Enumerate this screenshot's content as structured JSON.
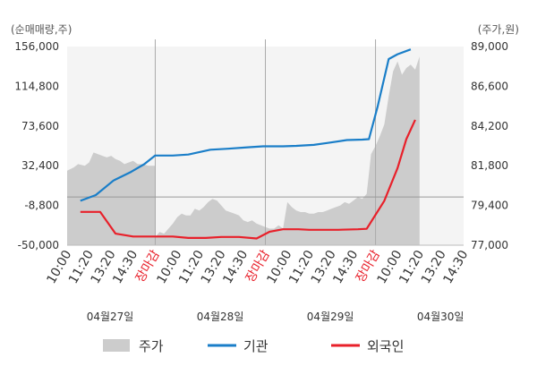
{
  "chart_data": {
    "type": "line",
    "y_left": {
      "unit_label": "(순매매량,주)",
      "ticks": [
        "156,000",
        "114,800",
        "73,600",
        "32,400",
        "-8,800",
        "-50,000"
      ],
      "range": [
        -50000,
        156000
      ]
    },
    "y_right": {
      "unit_label": "(주가,원)",
      "ticks": [
        "89,000",
        "86,600",
        "84,200",
        "81,800",
        "79,400",
        "77,000"
      ],
      "range": [
        77000,
        89000
      ]
    },
    "x_tick_labels": [
      {
        "text": "10:00",
        "red": false
      },
      {
        "text": "11:20",
        "red": false
      },
      {
        "text": "13:20",
        "red": false
      },
      {
        "text": "14:30",
        "red": false
      },
      {
        "text": "장마감",
        "red": true
      },
      {
        "text": "10:00",
        "red": false
      },
      {
        "text": "11:20",
        "red": false
      },
      {
        "text": "13:20",
        "red": false
      },
      {
        "text": "14:30",
        "red": false
      },
      {
        "text": "장마감",
        "red": true
      },
      {
        "text": "10:00",
        "red": false
      },
      {
        "text": "11:20",
        "red": false
      },
      {
        "text": "13:20",
        "red": false
      },
      {
        "text": "14:30",
        "red": false
      },
      {
        "text": "장마감",
        "red": true
      },
      {
        "text": "10:00",
        "red": false
      },
      {
        "text": "11:20",
        "red": false
      },
      {
        "text": "13:20",
        "red": false
      },
      {
        "text": "14:30",
        "red": false
      }
    ],
    "dates": [
      "04월27일",
      "04월28일",
      "04월29일",
      "04월30일"
    ],
    "date_tick_index": [
      0,
      5,
      10,
      15
    ],
    "series": [
      {
        "name": "주가",
        "kind": "area",
        "color": "#cccccc",
        "axis": "right",
        "points": [
          [
            0,
            81500
          ],
          [
            0.3,
            81700
          ],
          [
            0.5,
            81900
          ],
          [
            0.8,
            81800
          ],
          [
            1.0,
            82000
          ],
          [
            1.2,
            82600
          ],
          [
            1.4,
            82500
          ],
          [
            1.6,
            82400
          ],
          [
            1.8,
            82300
          ],
          [
            2.0,
            82400
          ],
          [
            2.2,
            82200
          ],
          [
            2.4,
            82100
          ],
          [
            2.6,
            81900
          ],
          [
            2.8,
            82000
          ],
          [
            3.0,
            82100
          ],
          [
            3.2,
            81900
          ],
          [
            3.4,
            81900
          ],
          [
            3.7,
            81800
          ],
          [
            4.0,
            81800
          ],
          [
            4.0,
            77500
          ],
          [
            4.2,
            77800
          ],
          [
            4.4,
            77700
          ],
          [
            4.6,
            78000
          ],
          [
            4.8,
            78300
          ],
          [
            5.0,
            78700
          ],
          [
            5.2,
            78900
          ],
          [
            5.4,
            78800
          ],
          [
            5.6,
            78800
          ],
          [
            5.8,
            79200
          ],
          [
            6.0,
            79100
          ],
          [
            6.2,
            79300
          ],
          [
            6.4,
            79600
          ],
          [
            6.6,
            79800
          ],
          [
            6.8,
            79700
          ],
          [
            7.0,
            79400
          ],
          [
            7.2,
            79100
          ],
          [
            7.4,
            79000
          ],
          [
            7.6,
            78900
          ],
          [
            7.8,
            78800
          ],
          [
            8.0,
            78500
          ],
          [
            8.2,
            78400
          ],
          [
            8.4,
            78500
          ],
          [
            8.6,
            78300
          ],
          [
            8.8,
            78200
          ],
          [
            9.0,
            78100
          ],
          [
            9.2,
            78000
          ],
          [
            9.4,
            78000
          ],
          [
            9.6,
            78200
          ],
          [
            9.8,
            78000
          ],
          [
            10.0,
            79600
          ],
          [
            10.2,
            79300
          ],
          [
            10.4,
            79100
          ],
          [
            10.6,
            79000
          ],
          [
            10.8,
            79000
          ],
          [
            11.0,
            78900
          ],
          [
            11.2,
            78900
          ],
          [
            11.4,
            79000
          ],
          [
            11.6,
            79000
          ],
          [
            11.8,
            79100
          ],
          [
            12.0,
            79200
          ],
          [
            12.2,
            79300
          ],
          [
            12.4,
            79400
          ],
          [
            12.6,
            79600
          ],
          [
            12.8,
            79500
          ],
          [
            13.0,
            79700
          ],
          [
            13.2,
            79900
          ],
          [
            13.4,
            79800
          ],
          [
            13.6,
            80100
          ],
          [
            13.8,
            82500
          ],
          [
            14.0,
            83000
          ],
          [
            14.2,
            83600
          ],
          [
            14.4,
            84300
          ],
          [
            14.6,
            86000
          ],
          [
            14.8,
            87500
          ],
          [
            15.0,
            88100
          ],
          [
            15.2,
            87300
          ],
          [
            15.4,
            87700
          ],
          [
            15.6,
            87900
          ],
          [
            15.8,
            87600
          ],
          [
            16.0,
            88400
          ]
        ]
      },
      {
        "name": "기관",
        "kind": "line",
        "color": "#1a7ec8",
        "axis": "left",
        "points": [
          [
            0.6,
            -4000
          ],
          [
            1.3,
            2000
          ],
          [
            2.1,
            17000
          ],
          [
            2.9,
            26000
          ],
          [
            3.5,
            34000
          ],
          [
            4.0,
            43000
          ],
          [
            4.8,
            43000
          ],
          [
            5.5,
            44000
          ],
          [
            6.5,
            49000
          ],
          [
            7.3,
            50000
          ],
          [
            8.2,
            51500
          ],
          [
            8.9,
            52500
          ],
          [
            9.8,
            52500
          ],
          [
            10.4,
            53000
          ],
          [
            11.2,
            54000
          ],
          [
            11.8,
            56000
          ],
          [
            12.7,
            59000
          ],
          [
            13.4,
            59500
          ],
          [
            13.7,
            60000
          ],
          [
            14.1,
            94000
          ],
          [
            14.6,
            143000
          ],
          [
            15.0,
            148000
          ],
          [
            15.6,
            153000
          ]
        ]
      },
      {
        "name": "외국인",
        "kind": "line",
        "color": "#e8202a",
        "axis": "left",
        "points": [
          [
            0.6,
            -15500
          ],
          [
            1.5,
            -15500
          ],
          [
            2.2,
            -38000
          ],
          [
            3.0,
            -41000
          ],
          [
            3.6,
            -41000
          ],
          [
            4.0,
            -41000
          ],
          [
            4.8,
            -41000
          ],
          [
            5.5,
            -42500
          ],
          [
            6.3,
            -42500
          ],
          [
            7.0,
            -41500
          ],
          [
            7.8,
            -41500
          ],
          [
            8.6,
            -43000
          ],
          [
            9.2,
            -36000
          ],
          [
            9.8,
            -33500
          ],
          [
            10.5,
            -33500
          ],
          [
            11.0,
            -34000
          ],
          [
            12.3,
            -34000
          ],
          [
            13.2,
            -33500
          ],
          [
            13.6,
            -33000
          ],
          [
            14.4,
            -4000
          ],
          [
            15.0,
            30000
          ],
          [
            15.4,
            60000
          ],
          [
            15.8,
            80000
          ]
        ]
      }
    ],
    "legend": {
      "placement": "bottom",
      "items": [
        {
          "label": "주가",
          "color": "#cccccc",
          "shape": "box"
        },
        {
          "label": "기관",
          "color": "#1a7ec8",
          "shape": "line"
        },
        {
          "label": "외국인",
          "color": "#e8202a",
          "shape": "line"
        }
      ]
    }
  }
}
